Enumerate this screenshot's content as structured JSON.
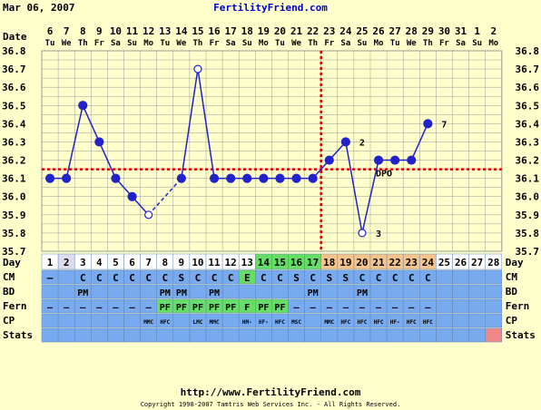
{
  "header": {
    "date": "Mar 06, 2007",
    "site": "FertilityFriend.com"
  },
  "footer": {
    "url": "http://www.FertilityFriend.com",
    "copyright": "Copyright 1998-2007 Tamtris Web Services Inc. - All Rights Reserved."
  },
  "colors": {
    "background": "#ffffcc",
    "line": "#2222cc",
    "dash": "#dd0000",
    "row_blue": "#77aaee",
    "green": "#66dd66",
    "orange": "#f4c48a",
    "pink": "#ee8888",
    "white_cell": "#ffffff",
    "lav_cell": "#ddddee"
  },
  "row_labels": {
    "date": "Date",
    "day": "Day",
    "cm": "CM",
    "bd": "BD",
    "fern": "Fern",
    "cp": "CP",
    "stats": "Stats"
  },
  "dates": [
    "6",
    "7",
    "8",
    "9",
    "10",
    "11",
    "12",
    "13",
    "14",
    "15",
    "16",
    "17",
    "18",
    "19",
    "20",
    "21",
    "22",
    "23",
    "24",
    "25",
    "26",
    "27",
    "28",
    "29",
    "30",
    "31",
    "1",
    "2"
  ],
  "weekdays": [
    "Tu",
    "We",
    "Th",
    "Fr",
    "Sa",
    "Su",
    "Mo",
    "Tu",
    "We",
    "Th",
    "Fr",
    "Sa",
    "Su",
    "Mo",
    "Tu",
    "We",
    "Th",
    "Fr",
    "Sa",
    "Su",
    "Mo",
    "Tu",
    "We",
    "Th",
    "Fr",
    "Sa",
    "Su",
    "Mo"
  ],
  "cycle_days": [
    "1",
    "2",
    "3",
    "4",
    "5",
    "6",
    "7",
    "8",
    "9",
    "10",
    "11",
    "12",
    "13",
    "14",
    "15",
    "16",
    "17",
    "18",
    "19",
    "20",
    "21",
    "22",
    "23",
    "24",
    "25",
    "26",
    "27",
    "28"
  ],
  "day_cell_colors": [
    "w",
    "l",
    "w",
    "w",
    "w",
    "w",
    "w",
    "w",
    "w",
    "w",
    "w",
    "w",
    "w",
    "g",
    "g",
    "g",
    "g",
    "o",
    "o",
    "o",
    "o",
    "o",
    "o",
    "o",
    "w",
    "w",
    "w",
    "w"
  ],
  "cm": [
    "—",
    "",
    "C",
    "C",
    "C",
    "C",
    "C",
    "C",
    "S",
    "C",
    "C",
    "C",
    "E",
    "C",
    "C",
    "S",
    "C",
    "S",
    "S",
    "C",
    "C",
    "C",
    "C",
    "C",
    "",
    "",
    "",
    ""
  ],
  "cm_green": [
    12
  ],
  "bd": [
    "",
    "",
    "PM",
    "",
    "",
    "",
    "",
    "PM",
    "PM",
    "",
    "PM",
    "",
    "",
    "",
    "",
    "",
    "PM",
    "",
    "",
    "PM",
    "",
    "",
    "",
    "",
    "",
    "",
    "",
    ""
  ],
  "fern": [
    "—",
    "—",
    "—",
    "—",
    "—",
    "—",
    "—",
    "PF",
    "PF",
    "PF",
    "PF",
    "PF",
    "F",
    "PF",
    "PF",
    "—",
    "—",
    "—",
    "—",
    "—",
    "—",
    "—",
    "—",
    "—",
    "",
    "",
    "",
    ""
  ],
  "fern_green": [
    7,
    8,
    9,
    10,
    11,
    12,
    13,
    14
  ],
  "cp": [
    "",
    "",
    "",
    "",
    "",
    "",
    "MMC",
    "HFC",
    "",
    "LMC",
    "MMC",
    "",
    "HM-",
    "HF-",
    "HFC",
    "MSC",
    "",
    "MMC",
    "HFC",
    "HFC",
    "HFC",
    "HF-",
    "HFC",
    "HFC",
    "",
    "",
    "",
    ""
  ],
  "stats_pink": [
    27
  ],
  "chart_data": {
    "type": "line",
    "x": [
      "1",
      "2",
      "3",
      "4",
      "5",
      "6",
      "7",
      "8",
      "9",
      "10",
      "11",
      "12",
      "13",
      "14",
      "15",
      "16",
      "17",
      "18",
      "19",
      "20",
      "21",
      "22",
      "23",
      "24",
      "25",
      "26",
      "27",
      "28"
    ],
    "series": [
      {
        "values": [
          36.1,
          36.1,
          36.5,
          36.3,
          36.1,
          36.0,
          35.9,
          null,
          36.1,
          36.7,
          36.1,
          36.1,
          36.1,
          36.1,
          36.1,
          36.1,
          36.1,
          36.2,
          36.3,
          35.8,
          36.2,
          36.2,
          36.2,
          36.4,
          null,
          null,
          null,
          null
        ]
      }
    ],
    "open_points": [
      7,
      10,
      20
    ],
    "dashed_segments": [
      [
        7,
        9
      ]
    ],
    "coverline": 36.15,
    "ovulation_day": 17,
    "annotations": [
      {
        "day": 19,
        "label": "2"
      },
      {
        "day": 20,
        "label": "3"
      },
      {
        "day": 21,
        "label": "DPO"
      },
      {
        "day": 24,
        "label": "7"
      }
    ],
    "yticks": [
      "35.7",
      "35.8",
      "35.9",
      "36.0",
      "36.1",
      "36.2",
      "36.3",
      "36.4",
      "36.5",
      "36.6",
      "36.7",
      "36.8"
    ],
    "ylim": [
      35.7,
      36.8
    ],
    "grid": true
  }
}
